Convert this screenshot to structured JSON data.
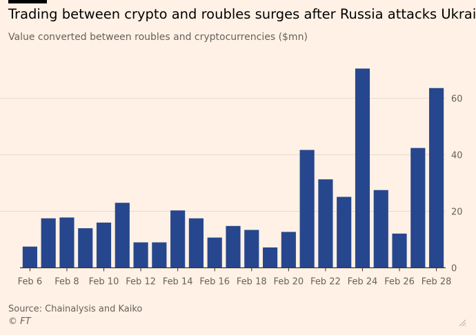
{
  "header": {
    "title": "Trading between crypto and roubles surges after Russia attacks Ukraine",
    "subtitle": "Value converted between roubles and cryptocurrencies ($mn)"
  },
  "footer": {
    "source": "Source: Chainalysis and Kaiko",
    "credit": "© FT"
  },
  "colors": {
    "background": "#FFF1E5",
    "bar": "#26478E",
    "grid": "#E6D9CE",
    "axis": "#33302E"
  },
  "chart_data": {
    "type": "bar",
    "title": "Trading between crypto and roubles surges after Russia attacks Ukraine",
    "subtitle": "Value converted between roubles and cryptocurrencies ($mn)",
    "xlabel": "",
    "ylabel": "",
    "ylim": [
      0,
      72
    ],
    "y_ticks": [
      0,
      20,
      40,
      60
    ],
    "y_axis_side": "right",
    "grid": true,
    "categories": [
      "Feb 6",
      "Feb 7",
      "Feb 8",
      "Feb 9",
      "Feb 10",
      "Feb 11",
      "Feb 12",
      "Feb 13",
      "Feb 14",
      "Feb 15",
      "Feb 16",
      "Feb 17",
      "Feb 18",
      "Feb 19",
      "Feb 20",
      "Feb 21",
      "Feb 22",
      "Feb 23",
      "Feb 24",
      "Feb 25",
      "Feb 26",
      "Feb 27",
      "Feb 28"
    ],
    "x_tick_labels": [
      "Feb 6",
      "Feb 8",
      "Feb 10",
      "Feb 12",
      "Feb 14",
      "Feb 16",
      "Feb 18",
      "Feb 20",
      "Feb 22",
      "Feb 24",
      "Feb 26",
      "Feb 28"
    ],
    "values": [
      7.5,
      17.5,
      17.8,
      14,
      16,
      23,
      9,
      9,
      20.3,
      17.5,
      10.7,
      14.8,
      13.4,
      7.2,
      12.7,
      41.7,
      31.3,
      25.1,
      70.5,
      27.5,
      12.1,
      42.4,
      63.6
    ]
  }
}
